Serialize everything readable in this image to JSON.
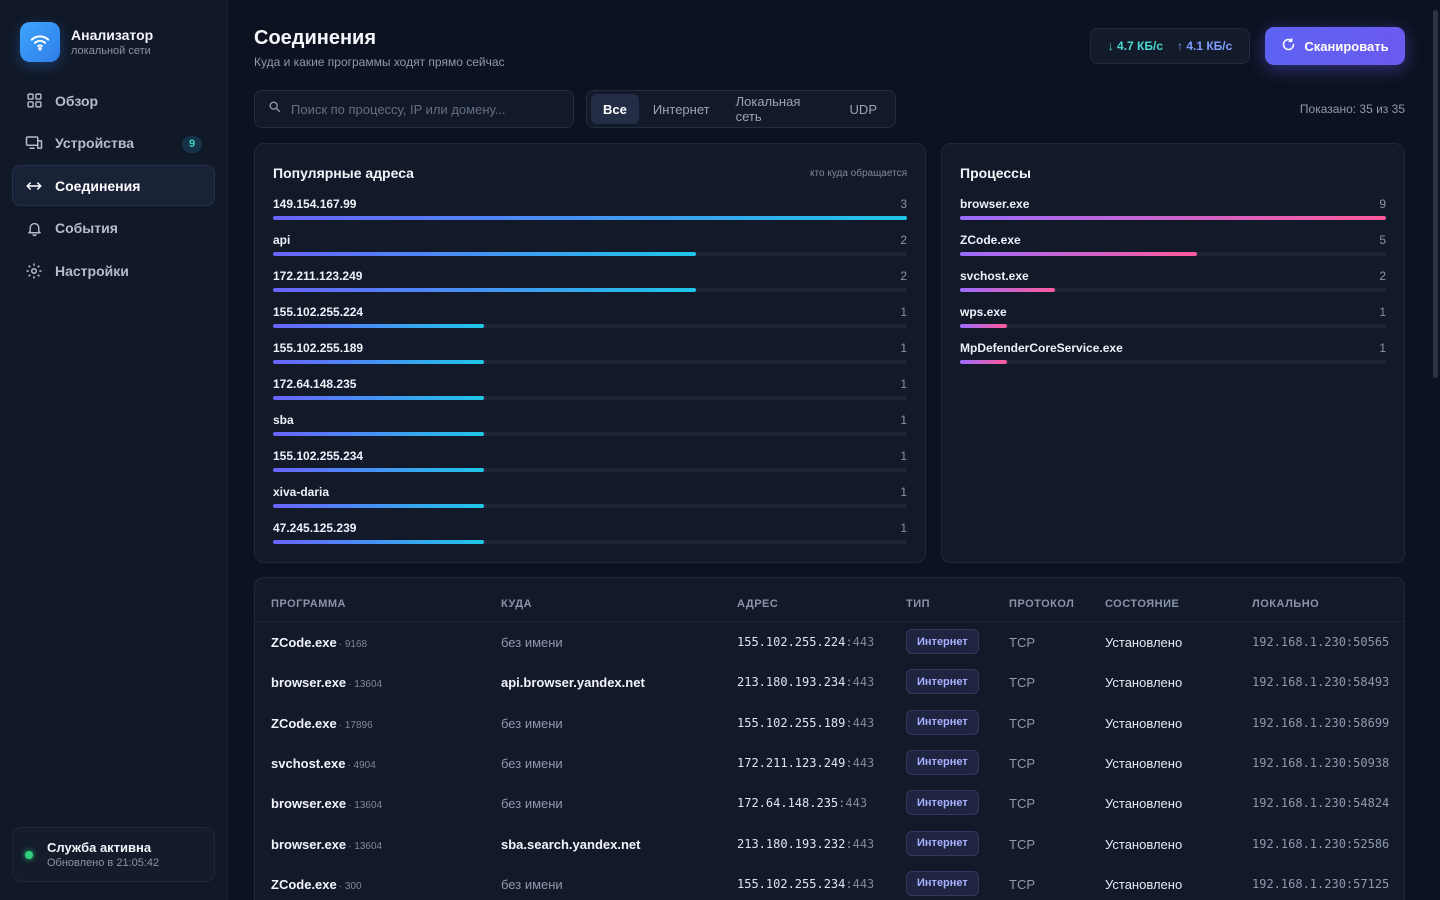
{
  "brand": {
    "title": "Анализатор",
    "subtitle": "локальной сети"
  },
  "nav": [
    {
      "label": "Обзор",
      "icon": "grid-icon"
    },
    {
      "label": "Устройства",
      "icon": "devices-icon",
      "badge": "9"
    },
    {
      "label": "Соединения",
      "icon": "arrows-icon",
      "active": true
    },
    {
      "label": "События",
      "icon": "bell-icon"
    },
    {
      "label": "Настройки",
      "icon": "gear-icon"
    }
  ],
  "service": {
    "title": "Служба активна",
    "updated": "Обновлено в 21:05:42"
  },
  "header": {
    "title": "Соединения",
    "subtitle": "Куда и какие программы ходят прямо сейчас",
    "speed_down": "↓ 4.7 КБ/с",
    "speed_up": "↑ 4.1 КБ/с",
    "scan_label": "Сканировать"
  },
  "search": {
    "placeholder": "Поиск по процессу, IP или домену..."
  },
  "filters": [
    "Все",
    "Интернет",
    "Локальная сеть",
    "UDP"
  ],
  "shown": "Показано: 35 из 35",
  "popular": {
    "title": "Популярные адреса",
    "hint": "кто куда обращается",
    "max": 3,
    "items": [
      {
        "label": "149.154.167.99",
        "count": 3
      },
      {
        "label": "api",
        "count": 2
      },
      {
        "label": "172.211.123.249",
        "count": 2
      },
      {
        "label": "155.102.255.224",
        "count": 1
      },
      {
        "label": "155.102.255.189",
        "count": 1
      },
      {
        "label": "172.64.148.235",
        "count": 1
      },
      {
        "label": "sba",
        "count": 1
      },
      {
        "label": "155.102.255.234",
        "count": 1
      },
      {
        "label": "xiva-daria",
        "count": 1
      },
      {
        "label": "47.245.125.239",
        "count": 1
      }
    ]
  },
  "processes": {
    "title": "Процессы",
    "max": 9,
    "items": [
      {
        "label": "browser.exe",
        "count": 9
      },
      {
        "label": "ZCode.exe",
        "count": 5
      },
      {
        "label": "svchost.exe",
        "count": 2
      },
      {
        "label": "wps.exe",
        "count": 1
      },
      {
        "label": "MpDefenderCoreService.exe",
        "count": 1
      }
    ]
  },
  "table": {
    "headers": [
      "ПРОГРАММА",
      "КУДА",
      "АДРЕС",
      "ТИП",
      "ПРОТОКОЛ",
      "СОСТОЯНИЕ",
      "ЛОКАЛЬНО"
    ],
    "rows": [
      {
        "proc": "ZCode.exe",
        "pid": "· 9168",
        "dest": "без имени",
        "dest_named": false,
        "ip": "155.102.255.224",
        "port": ":443",
        "type": "Интернет",
        "proto": "TCP",
        "state": "Установлено",
        "local": "192.168.1.230:50565"
      },
      {
        "proc": "browser.exe",
        "pid": "· 13604",
        "dest": "api.browser.yandex.net",
        "dest_named": true,
        "ip": "213.180.193.234",
        "port": ":443",
        "type": "Интернет",
        "proto": "TCP",
        "state": "Установлено",
        "local": "192.168.1.230:58493"
      },
      {
        "proc": "ZCode.exe",
        "pid": "· 17896",
        "dest": "без имени",
        "dest_named": false,
        "ip": "155.102.255.189",
        "port": ":443",
        "type": "Интернет",
        "proto": "TCP",
        "state": "Установлено",
        "local": "192.168.1.230:58699"
      },
      {
        "proc": "svchost.exe",
        "pid": "· 4904",
        "dest": "без имени",
        "dest_named": false,
        "ip": "172.211.123.249",
        "port": ":443",
        "type": "Интернет",
        "proto": "TCP",
        "state": "Установлено",
        "local": "192.168.1.230:50938"
      },
      {
        "proc": "browser.exe",
        "pid": "· 13604",
        "dest": "без имени",
        "dest_named": false,
        "ip": "172.64.148.235",
        "port": ":443",
        "type": "Интернет",
        "proto": "TCP",
        "state": "Установлено",
        "local": "192.168.1.230:54824"
      },
      {
        "proc": "browser.exe",
        "pid": "· 13604",
        "dest": "sba.search.yandex.net",
        "dest_named": true,
        "ip": "213.180.193.232",
        "port": ":443",
        "type": "Интернет",
        "proto": "TCP",
        "state": "Установлено",
        "local": "192.168.1.230:52586"
      },
      {
        "proc": "ZCode.exe",
        "pid": "· 300",
        "dest": "без имени",
        "dest_named": false,
        "ip": "155.102.255.234",
        "port": ":443",
        "type": "Интернет",
        "proto": "TCP",
        "state": "Установлено",
        "local": "192.168.1.230:57125"
      }
    ]
  },
  "colors": {
    "accent": "#5d62f2",
    "teal": "#35d6c1",
    "status_ok": "#2fd17a"
  }
}
